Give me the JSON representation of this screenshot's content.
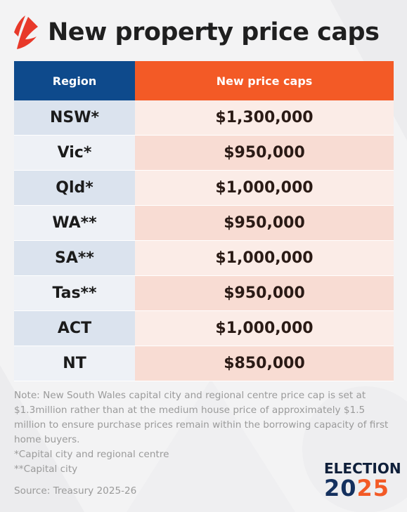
{
  "title": "New property price caps",
  "table": {
    "headers": {
      "region": "Region",
      "cap": "New price caps"
    },
    "rows": [
      {
        "region": "NSW*",
        "cap": "$1,300,000"
      },
      {
        "region": "Vic*",
        "cap": "$950,000"
      },
      {
        "region": "Qld*",
        "cap": "$1,000,000"
      },
      {
        "region": "WA**",
        "cap": "$950,000"
      },
      {
        "region": "SA**",
        "cap": "$1,000,000"
      },
      {
        "region": "Tas**",
        "cap": "$950,000"
      },
      {
        "region": "ACT",
        "cap": "$1,000,000"
      },
      {
        "region": "NT",
        "cap": "$850,000"
      }
    ]
  },
  "notes": {
    "main": "Note: New South Wales capital city and regional centre price cap is set at $1.3million rather than at the medium house price of approximately $1.5 million to ensure purchase prices remain within the borrowing capacity of first home buyers.",
    "footnote_1": "*Capital city and regional centre",
    "footnote_2": "**Capital city"
  },
  "source": "Source: Treasury 2025-26",
  "branding": {
    "election_word": "ELECTION",
    "year_part_1": "20",
    "year_part_2": "25",
    "logo_icon": "sbs-logo-icon"
  },
  "colors": {
    "header_region": "#0e4a8c",
    "header_cap": "#f35a26",
    "accent_red": "#e8392a"
  }
}
